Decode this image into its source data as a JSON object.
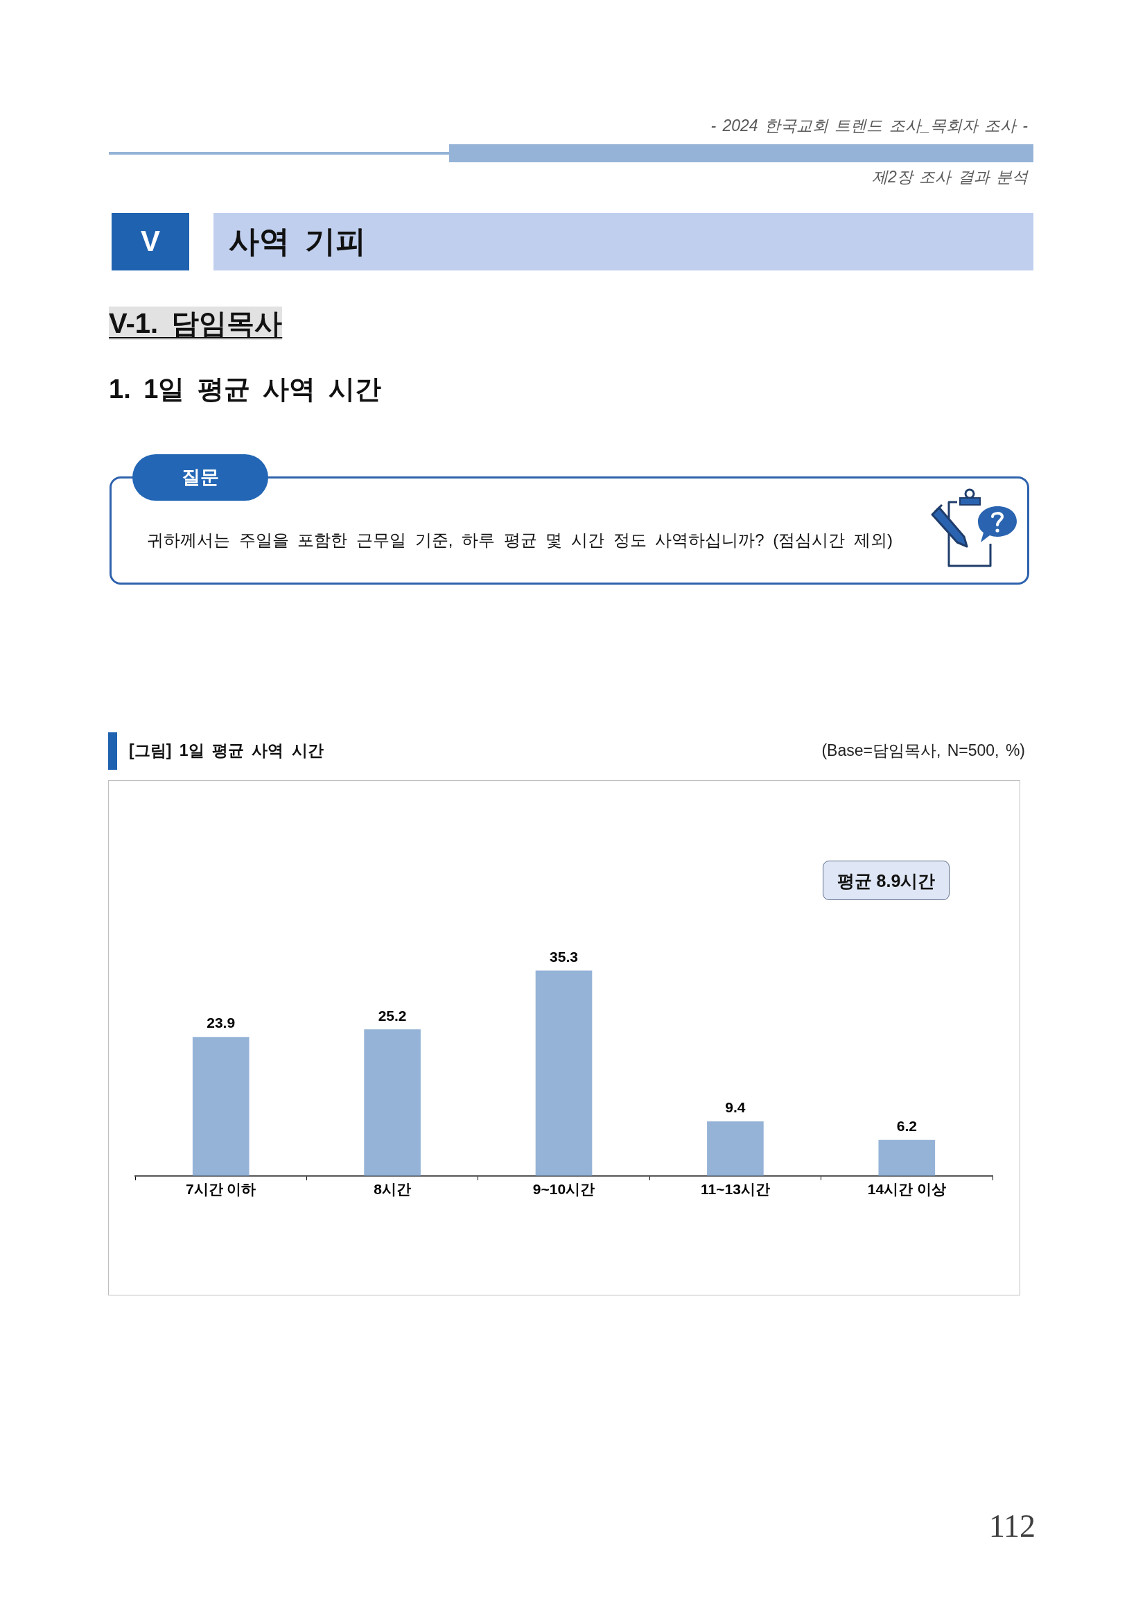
{
  "chart_data": {
    "type": "bar",
    "title": "[그림] 1일 평균 사역 시간",
    "subtitle": "(Base=담임목사, N=500, %)",
    "categories": [
      "7시간 이하",
      "8시간",
      "9~10시간",
      "11~13시간",
      "14시간 이상"
    ],
    "values": [
      23.9,
      25.2,
      35.3,
      9.4,
      6.2
    ],
    "color": "#95b3d7",
    "data_labels": true,
    "annotations": [
      "- 2024 한국교회 트렌드 조사_목회자 조사 -",
      "제2장 조사 결과 분석",
      "V",
      "사역 기피",
      "V-1. 담임목사",
      "1. 1일 평균 사역 시간",
      "질문",
      "귀하께서는 주일을 포함한 근무일 기준, 하루 평균 몇 시간 정도 사역하십니까? (점심시간 제외)",
      "평균 8.9시간",
      "112"
    ]
  }
}
